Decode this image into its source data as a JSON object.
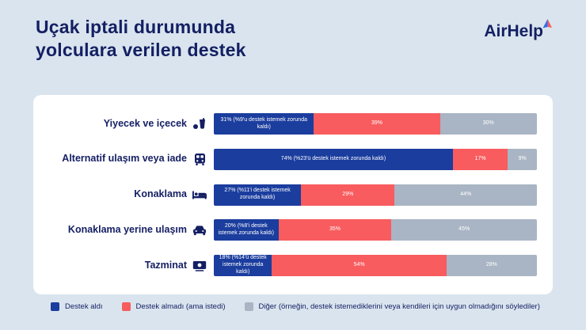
{
  "header": {
    "title_line1": "Uçak iptali durumunda",
    "title_line2": "yolculara verilen destek",
    "brand": "AirHelp"
  },
  "colors": {
    "background": "#d9e4ee",
    "card": "#ffffff",
    "navy_text": "#141f63",
    "support_received": "#1b3d9e",
    "support_not_received": "#f85c5f",
    "other": "#a9b5c4",
    "logo_mark_blue": "#2f6fed",
    "logo_mark_red": "#f85c5f"
  },
  "chart_data": {
    "type": "bar",
    "orientation": "horizontal",
    "stacked": true,
    "unit": "percent",
    "title": "Uçak iptali durumunda yolculara verilen destek",
    "xlim": [
      0,
      100
    ],
    "grid": false,
    "legend_position": "bottom",
    "categories": [
      "Yiyecek ve içecek",
      "Alternatif ulaşım veya iade",
      "Konaklama",
      "Konaklama yerine ulaşım",
      "Tazminat"
    ],
    "category_icons": [
      "food-drink-icon",
      "bus-icon",
      "bed-icon",
      "car-icon",
      "money-icon"
    ],
    "series": [
      {
        "name": "Destek aldı",
        "color": "#1b3d9e",
        "values": [
          31,
          74,
          27,
          20,
          18
        ]
      },
      {
        "name": "Destek almadı (ama istedi)",
        "color": "#f85c5f",
        "values": [
          39,
          17,
          29,
          35,
          54
        ]
      },
      {
        "name": "Diğer",
        "color": "#a9b5c4",
        "values": [
          30,
          9,
          44,
          45,
          28
        ]
      }
    ],
    "segment_labels": [
      [
        "31% (%9'u destek istemek zorunda kaldı)",
        "39%",
        "30%"
      ],
      [
        "74% (%23'ü destek istemek zorunda kaldı)",
        "17%",
        "9%"
      ],
      [
        "27% (%11'i destek istemek zorunda kaldı)",
        "29%",
        "44%"
      ],
      [
        "20% (%8'i destek istemek zorunda kaldı)",
        "35%",
        "45%"
      ],
      [
        "18% (%14'ü destek istemek zorunda kaldı)",
        "54%",
        "28%"
      ]
    ]
  },
  "legend": {
    "items": [
      {
        "label": "Destek aldı",
        "color": "#1b3d9e"
      },
      {
        "label": "Destek almadı (ama istedi)",
        "color": "#f85c5f"
      },
      {
        "label": "Diğer (örneğin, destek istemediklerini veya kendileri için uygun olmadığını söylediler)",
        "color": "#a9b5c4"
      }
    ]
  }
}
